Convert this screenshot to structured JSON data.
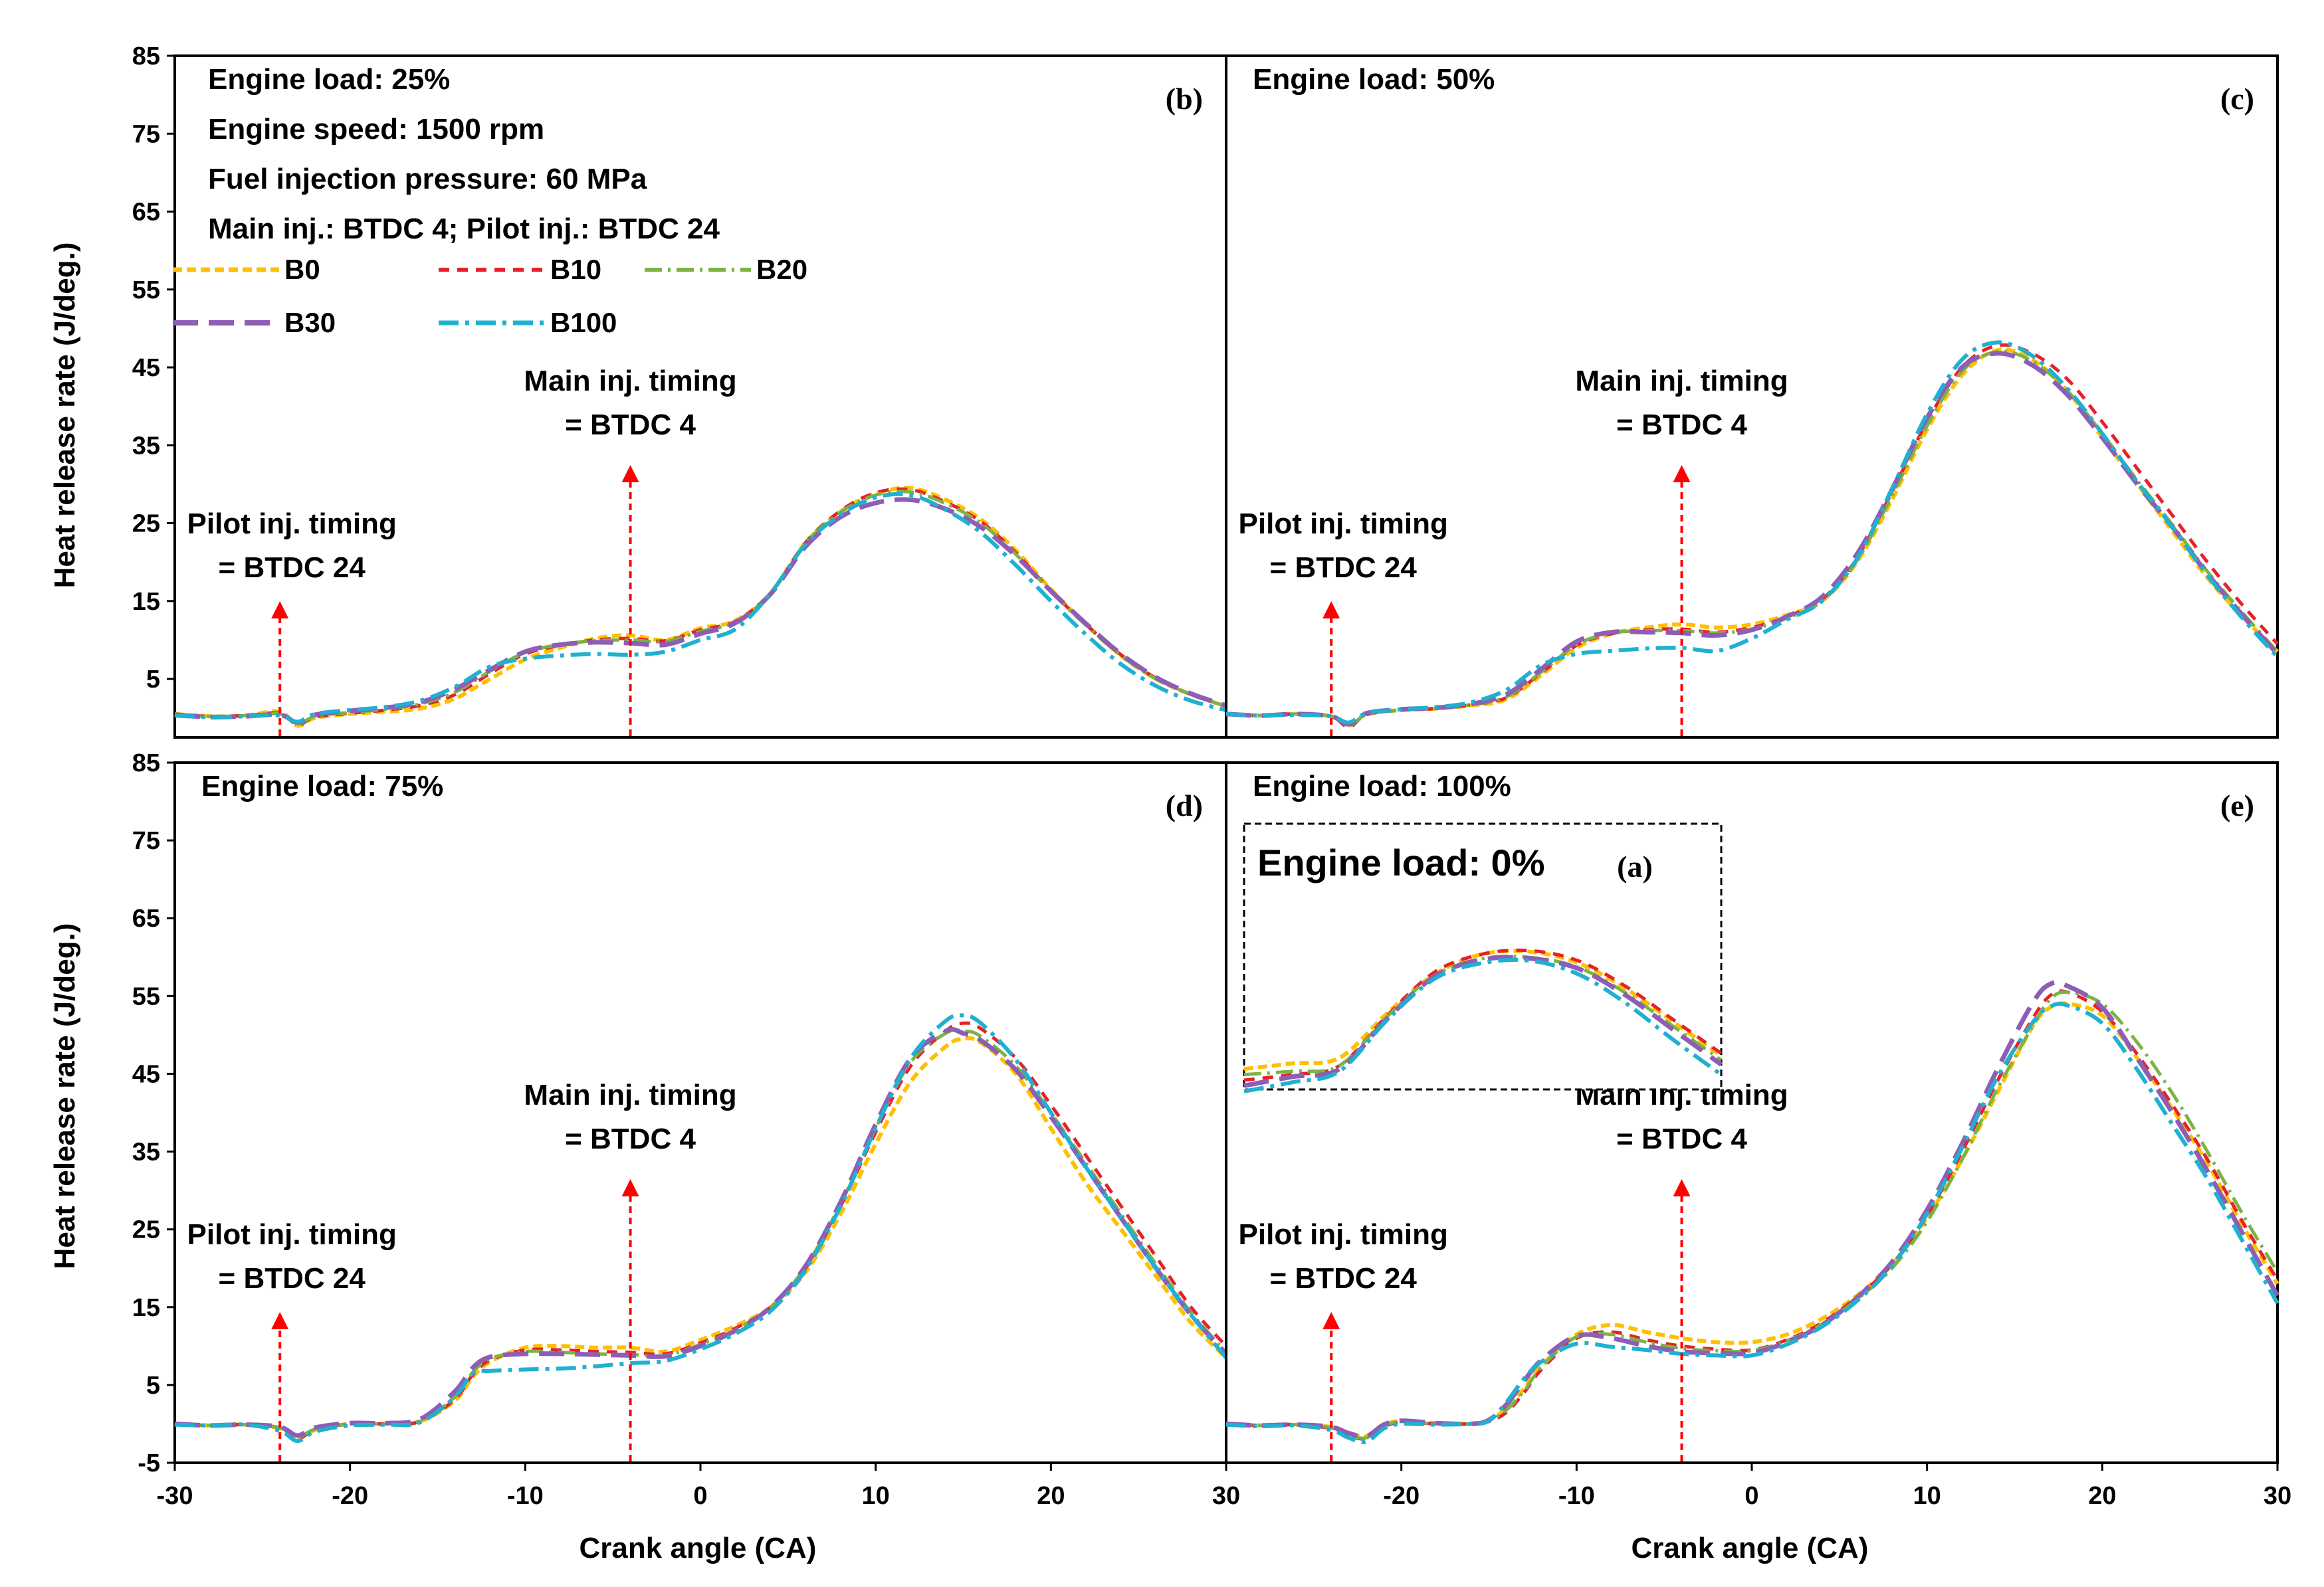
{
  "figure": {
    "ylabel": "Heat release rate (J/deg.)",
    "xlabel": "Crank angle (CA)"
  },
  "chart_data": [
    {
      "id": "b",
      "type": "line",
      "tag": "(b)",
      "xlim": [
        -30,
        30
      ],
      "ylim": [
        -5,
        85
      ],
      "xticks": [],
      "yticks": [
        85,
        75,
        65,
        55,
        45,
        35,
        25,
        15,
        5
      ],
      "info": [
        "Engine load: 25%",
        "Engine speed: 1500 rpm",
        "Fuel injection pressure: 60 MPa",
        "Main inj.:  BTDC 4; Pilot inj.: BTDC 24"
      ],
      "legend": [
        "B0",
        "B10",
        "B20",
        "B30",
        "B100"
      ],
      "pilot_label": [
        "Pilot inj. timing",
        "= BTDC 24"
      ],
      "main_label": [
        "Main inj. timing",
        "= BTDC 4"
      ],
      "pilot_x": -24,
      "main_x": -4,
      "x": [
        -30,
        -28,
        -26,
        -24,
        -23,
        -22,
        -20,
        -18,
        -16,
        -14,
        -12,
        -10,
        -8,
        -6,
        -4,
        -2,
        0,
        2,
        4,
        6,
        8,
        10,
        12,
        14,
        16,
        18,
        20,
        22,
        24,
        26,
        28,
        30
      ],
      "series": [
        {
          "name": "B0",
          "values": [
            0.5,
            0.2,
            0.3,
            0.8,
            -1,
            0,
            0.5,
            0.8,
            1.2,
            2.5,
            5,
            7.5,
            9,
            10.2,
            10.6,
            10,
            11.5,
            12.5,
            16,
            22.5,
            26.5,
            28.8,
            29.5,
            28,
            25.5,
            21.5,
            16.5,
            12,
            8,
            5,
            3,
            1.5
          ]
        },
        {
          "name": "B10",
          "values": [
            0.5,
            0.2,
            0.3,
            0.6,
            -0.9,
            0.1,
            0.6,
            1,
            1.6,
            3,
            5.7,
            8.2,
            9.3,
            10,
            10.2,
            9.9,
            11.3,
            12.4,
            16,
            22.5,
            26.6,
            28.9,
            29.3,
            27.7,
            25.2,
            21.2,
            16.3,
            12,
            8.1,
            5.1,
            3,
            1.5
          ]
        },
        {
          "name": "B20",
          "values": [
            0.4,
            0.2,
            0.3,
            0.5,
            -0.8,
            0.2,
            0.7,
            1.1,
            1.8,
            3.3,
            6,
            8.4,
            9.4,
            9.9,
            10,
            9.8,
            11.1,
            12.3,
            16,
            22.4,
            26.4,
            28.6,
            29,
            27.5,
            25,
            21,
            16.2,
            11.9,
            8,
            5,
            3,
            1.5
          ]
        },
        {
          "name": "B30",
          "values": [
            0.4,
            0.1,
            0.2,
            0.4,
            -0.6,
            0.4,
            0.9,
            1.3,
            2,
            3.7,
            6.2,
            8.5,
            9.4,
            9.7,
            9.6,
            9.4,
            10.8,
            12.2,
            15.9,
            22,
            25.8,
            27.6,
            28,
            26.8,
            24.5,
            20.8,
            16.3,
            12.1,
            8.2,
            5.2,
            3.1,
            1.6
          ]
        },
        {
          "name": "B100",
          "values": [
            0.3,
            0.1,
            0.2,
            0.3,
            -0.5,
            0.5,
            1,
            1.4,
            2.2,
            4,
            6.6,
            7.6,
            8,
            8.2,
            8.1,
            8.5,
            10,
            11.4,
            16,
            22.3,
            26.1,
            28.3,
            28.6,
            26.7,
            23.8,
            19.6,
            15,
            10.7,
            6.9,
            4.1,
            2.2,
            1
          ]
        }
      ]
    },
    {
      "id": "c",
      "type": "line",
      "tag": "(c)",
      "xlim": [
        -30,
        30
      ],
      "ylim": [
        -5,
        85
      ],
      "xticks": [],
      "yticks": [],
      "info": [
        "Engine load: 50%"
      ],
      "pilot_label": [
        "Pilot inj. timing",
        "= BTDC 24"
      ],
      "main_label": [
        "Main inj. timing",
        "= BTDC 4"
      ],
      "pilot_x": -24,
      "main_x": -4,
      "x": [
        -30,
        -28,
        -26,
        -24,
        -23,
        -22,
        -20,
        -18,
        -16,
        -14,
        -12,
        -10,
        -8,
        -6,
        -4,
        -2,
        0,
        2,
        4,
        6,
        8,
        10,
        12,
        14,
        16,
        18,
        20,
        22,
        24,
        26,
        28,
        30
      ],
      "series": [
        {
          "name": "B0",
          "values": [
            0.5,
            0.3,
            0.5,
            0.2,
            -1,
            0.5,
            1,
            1.2,
            1.6,
            2.4,
            5.5,
            9,
            10.8,
            11.6,
            12,
            11.6,
            12,
            13.2,
            15,
            20,
            28,
            37,
            44,
            47.2,
            46,
            42,
            36,
            30,
            24,
            18,
            13,
            8.5
          ]
        },
        {
          "name": "B10",
          "values": [
            0.5,
            0.3,
            0.5,
            0.2,
            -1.2,
            0.4,
            1,
            1.2,
            1.7,
            2.6,
            5.8,
            9.3,
            10.8,
            11.3,
            11.4,
            11,
            11.6,
            13,
            15.2,
            20.5,
            29,
            38,
            45,
            47.8,
            46.8,
            43.5,
            38,
            32,
            26,
            20,
            14.5,
            9.5
          ]
        },
        {
          "name": "B20",
          "values": [
            0.5,
            0.3,
            0.5,
            0.2,
            -1,
            0.4,
            1,
            1.2,
            1.7,
            2.7,
            5.9,
            9.4,
            10.9,
            11.2,
            11.2,
            10.9,
            11.4,
            12.8,
            15,
            20.2,
            28.5,
            37.5,
            44.5,
            47,
            45.8,
            42,
            36.5,
            30.5,
            24.8,
            18.8,
            13.5,
            8.5
          ]
        },
        {
          "name": "B30",
          "values": [
            0.5,
            0.3,
            0.5,
            0.2,
            -0.8,
            0.6,
            1.1,
            1.3,
            1.8,
            3,
            6.3,
            9.8,
            11,
            11,
            10.9,
            10.6,
            11.3,
            13,
            15.5,
            21,
            29.3,
            38.5,
            45,
            46.8,
            45.3,
            41.5,
            36,
            30,
            24.5,
            18.5,
            13.2,
            8.2
          ]
        },
        {
          "name": "B100",
          "values": [
            0.5,
            0.3,
            0.4,
            0.2,
            -0.6,
            0.6,
            1.1,
            1.4,
            2,
            3.6,
            6.8,
            8.2,
            8.6,
            8.9,
            9,
            8.6,
            10.2,
            12.6,
            15,
            20.4,
            29.4,
            39,
            46,
            48.2,
            46.5,
            42.3,
            36.5,
            30.3,
            24.5,
            18.3,
            12.8,
            7.8
          ]
        }
      ]
    },
    {
      "id": "d",
      "type": "line",
      "tag": "(d)",
      "xlim": [
        -30,
        30
      ],
      "ylim": [
        -5,
        85
      ],
      "xticks": [
        -30,
        -20,
        -10,
        0,
        10,
        20,
        30
      ],
      "yticks": [
        85,
        75,
        65,
        55,
        45,
        35,
        25,
        15,
        5,
        -5
      ],
      "info": [
        "Engine load: 75%"
      ],
      "pilot_label": [
        "Pilot inj. timing",
        "= BTDC 24"
      ],
      "main_label": [
        "Main inj. timing",
        "= BTDC 4"
      ],
      "pilot_x": -24,
      "main_x": -4,
      "x": [
        -30,
        -28,
        -26,
        -24,
        -23,
        -22,
        -20,
        -18,
        -16,
        -14,
        -13,
        -12,
        -10,
        -8,
        -6,
        -4,
        -2,
        0,
        2,
        4,
        6,
        8,
        10,
        12,
        14,
        15,
        16,
        18,
        20,
        22,
        24,
        26,
        28,
        30
      ],
      "series": [
        {
          "name": "B0",
          "values": [
            0,
            -0.2,
            -0.1,
            -0.6,
            -1.8,
            -0.8,
            0,
            0,
            0.3,
            3,
            6,
            8,
            9.8,
            10,
            9.8,
            9.8,
            9.3,
            10.8,
            12.6,
            15,
            19.5,
            27,
            36,
            44,
            48.5,
            49.5,
            49,
            45,
            38,
            31,
            25,
            19,
            13,
            8.5
          ]
        },
        {
          "name": "B10",
          "values": [
            0,
            -0.2,
            -0.1,
            -0.5,
            -1.9,
            -0.8,
            0,
            0,
            0.3,
            3.2,
            6.3,
            8.2,
            9.5,
            9.5,
            9.3,
            9.2,
            9,
            10.4,
            12.3,
            15,
            20,
            28,
            37.5,
            46,
            50.5,
            51.5,
            50.8,
            47,
            41,
            34.5,
            28,
            21.5,
            15,
            10
          ]
        },
        {
          "name": "B20",
          "values": [
            0,
            -0.2,
            -0.1,
            -0.5,
            -1.7,
            -0.7,
            0,
            0,
            0.4,
            3.5,
            6.6,
            8.4,
            9.3,
            9.2,
            9,
            8.9,
            8.8,
            10.2,
            12.1,
            15,
            20.2,
            28.3,
            38,
            46.5,
            50.2,
            50.5,
            49.8,
            46,
            40,
            33.5,
            27,
            20.5,
            14.3,
            9.2
          ]
        },
        {
          "name": "B30",
          "values": [
            0,
            -0.2,
            -0.1,
            -0.4,
            -1.5,
            -0.5,
            0.1,
            0.1,
            0.6,
            4.2,
            7.2,
            8.6,
            9,
            9,
            8.9,
            8.8,
            8.7,
            10,
            12,
            15,
            20.3,
            28.5,
            38.5,
            47,
            50.5,
            50.2,
            49.3,
            45.5,
            39.5,
            33,
            26.5,
            20,
            14,
            9
          ]
        },
        {
          "name": "B100",
          "values": [
            -0.1,
            -0.2,
            -0.1,
            -0.9,
            -2.2,
            -1,
            -0.2,
            -0.1,
            0.2,
            3.5,
            6.5,
            6.8,
            7,
            7.1,
            7.4,
            7.8,
            8.1,
            9.6,
            11.6,
            14.5,
            19.8,
            28,
            38,
            47,
            51.8,
            52.5,
            51.5,
            46.8,
            40,
            33,
            26.5,
            20,
            14,
            8.5
          ]
        }
      ]
    },
    {
      "id": "e",
      "type": "line",
      "tag": "(e)",
      "xlim": [
        -30,
        30
      ],
      "ylim": [
        -5,
        85
      ],
      "xticks": [
        -20,
        -10,
        0,
        10,
        20,
        30
      ],
      "yticks": [],
      "info": [
        "Engine load: 100%"
      ],
      "pilot_label": [
        "Pilot inj. timing",
        "= BTDC 24"
      ],
      "main_label": [
        "Main inj. timing",
        "= BTDC 4"
      ],
      "pilot_x": -24,
      "main_x": -4,
      "x": [
        -30,
        -28,
        -26,
        -24,
        -23,
        -22,
        -21,
        -20,
        -18,
        -16,
        -15,
        -14,
        -13,
        -12,
        -10,
        -8,
        -6,
        -4,
        -2,
        0,
        2,
        4,
        6,
        8,
        10,
        12,
        14,
        16,
        17,
        18,
        20,
        22,
        24,
        26,
        28,
        30
      ],
      "series": [
        {
          "name": "B0",
          "values": [
            0,
            -0.2,
            -0.1,
            -0.4,
            -1.2,
            -1.6,
            -0.2,
            0.4,
            0.1,
            0,
            0.5,
            2,
            4.5,
            7.5,
            11.5,
            12.7,
            11.8,
            11,
            10.5,
            10.5,
            11.5,
            13.5,
            16.5,
            20.5,
            26.5,
            34,
            42.5,
            51,
            53.5,
            54,
            52.5,
            47,
            40.5,
            33.5,
            25.5,
            18
          ]
        },
        {
          "name": "B10",
          "values": [
            0,
            -0.2,
            -0.1,
            -0.6,
            -1.5,
            -1.9,
            -0.4,
            0.2,
            0,
            0,
            0.3,
            1.5,
            4,
            7,
            11,
            11.8,
            10.8,
            10,
            9.6,
            9.5,
            10.8,
            13,
            16.3,
            20.5,
            26.8,
            35,
            44,
            52,
            55,
            55.5,
            53,
            47.5,
            41,
            34,
            26,
            18.5
          ]
        },
        {
          "name": "B20",
          "values": [
            0,
            -0.2,
            -0.1,
            -0.5,
            -1.4,
            -1.8,
            -0.3,
            0.3,
            0,
            0,
            0.4,
            1.8,
            4.2,
            7.3,
            11.2,
            11.5,
            10.5,
            9.7,
            9.4,
            9.4,
            10.7,
            12.8,
            16,
            20,
            26,
            34,
            43,
            51,
            54.5,
            55.5,
            54,
            49,
            42.5,
            35,
            27,
            19.5
          ]
        },
        {
          "name": "B30",
          "values": [
            0,
            -0.2,
            -0.1,
            -0.4,
            -1.2,
            -1.6,
            -0.1,
            0.4,
            0.1,
            0,
            0.5,
            2.5,
            5.5,
            8.2,
            11.3,
            11,
            10,
            9.3,
            9.1,
            9.1,
            10.5,
            12.7,
            16.2,
            20.8,
            27.5,
            36,
            45.5,
            54,
            56.5,
            56.3,
            53.5,
            47,
            40,
            32.5,
            24.5,
            16.5
          ]
        },
        {
          "name": "B100",
          "values": [
            -0.1,
            -0.3,
            -0.2,
            -0.8,
            -1.8,
            -2.3,
            -0.6,
            0,
            -0.1,
            0,
            0.4,
            2.8,
            5.8,
            8,
            10.3,
            9.9,
            9.5,
            9,
            8.8,
            8.8,
            10.2,
            12.5,
            15.8,
            20.3,
            27,
            35.5,
            44.5,
            51.5,
            53.6,
            53.8,
            51.5,
            45.5,
            38.5,
            31.5,
            23.5,
            15.5
          ]
        }
      ]
    },
    {
      "id": "a",
      "type": "line",
      "tag": "(a)",
      "inset": true,
      "info": [
        "Engine load: 0%"
      ],
      "note": "inset shown without axes; values in arbitrary units",
      "x": [
        0,
        1,
        2,
        3,
        4,
        5,
        6,
        7,
        8,
        9,
        10
      ],
      "series": [
        {
          "name": "B0",
          "values": [
            6,
            6.5,
            7,
            11,
            14.5,
            16.3,
            16.5,
            15.5,
            13.2,
            10.2,
            7.2
          ]
        },
        {
          "name": "B10",
          "values": [
            5,
            5.5,
            6.3,
            10.8,
            14.7,
            16.3,
            16.6,
            15.7,
            13.4,
            10.4,
            7.4
          ]
        },
        {
          "name": "B20",
          "values": [
            5.5,
            5.8,
            6.3,
            10.7,
            14.4,
            15.9,
            16,
            15.1,
            12.8,
            9.8,
            6.8
          ]
        },
        {
          "name": "B30",
          "values": [
            4.5,
            5.3,
            6,
            10.5,
            14.3,
            15.8,
            15.9,
            15,
            12.6,
            9.5,
            6.4
          ]
        },
        {
          "name": "B100",
          "values": [
            4,
            4.8,
            5.8,
            10.4,
            14.1,
            15.5,
            15.7,
            14.5,
            11.9,
            8.6,
            5.5
          ]
        }
      ]
    }
  ],
  "style": {
    "colors": {
      "B0": "#FFC000",
      "B10": "#E8202A",
      "B20": "#7CB342",
      "B30": "#8E5DB5",
      "B100": "#20B0D0"
    },
    "dashes": {
      "B0": "14 7",
      "B10": "16 12",
      "B20": "26 9 4 9",
      "B30": "38 16",
      "B100": "30 10 6 10"
    },
    "arrow_color": "#FF0000",
    "widths": {
      "B0": 6,
      "B10": 5,
      "B20": 5,
      "B30": 7,
      "B100": 6
    }
  }
}
